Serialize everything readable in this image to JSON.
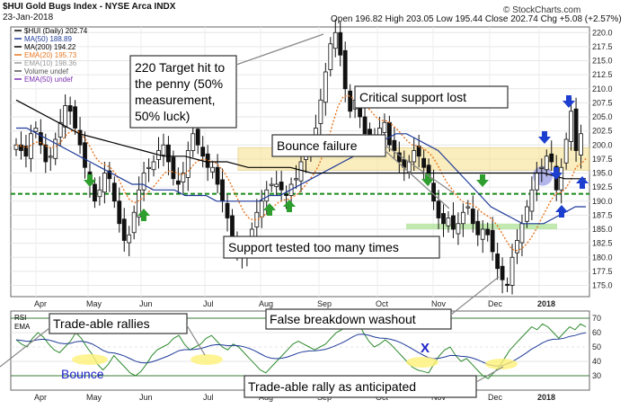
{
  "chart_data": {
    "type": "candlestick",
    "title": "$HUI Gold Bugs Index - NYSE Arca INDX",
    "date": "23-Jan-2018",
    "ohlc_summary": {
      "open": "196.82",
      "high": "203.05",
      "low": "195.44",
      "close": "202.74",
      "chg": "+5.08 (+2.57%)"
    },
    "watermark": "© StockCharts.com",
    "legend": [
      {
        "text": "$HUI (Daily) 202.74",
        "color": "#000000"
      },
      {
        "text": "MA(50) 188.89",
        "color": "#1f3b99"
      },
      {
        "text": "MA(200) 194.22",
        "color": "#000000"
      },
      {
        "text": "EMA(20) 195.73",
        "color": "#e87722"
      },
      {
        "text": "EMA(10) 198.36",
        "color": "#9a9a9a"
      },
      {
        "text": "Volume undef",
        "color": "#555555"
      },
      {
        "text": "EMA(50) undef",
        "color": "#7a2fb0"
      }
    ],
    "y_ticks": [
      "220.0",
      "217.5",
      "215.0",
      "212.5",
      "210.0",
      "207.5",
      "205.0",
      "202.5",
      "200.0",
      "197.5",
      "195.0",
      "192.5",
      "190.0",
      "187.5",
      "185.0",
      "182.5",
      "180.0",
      "177.5",
      "175.0"
    ],
    "ylim": [
      173,
      221
    ],
    "x_labels": [
      "Apr",
      "May",
      "Jun",
      "Jul",
      "Aug",
      "Sep",
      "Oct",
      "Nov",
      "Dec",
      "2018"
    ],
    "support_line": 191.3,
    "resistance_zone": [
      195.5,
      199.5
    ],
    "lower_zone": [
      185,
      186
    ],
    "series": [
      {
        "name": "price",
        "values": [
          200,
          199,
          198,
          202,
          203,
          200,
          197,
          198,
          201,
          204,
          207,
          206,
          203,
          200,
          196,
          193,
          190,
          192,
          195,
          194,
          190,
          186,
          183,
          184,
          188,
          192,
          195,
          196,
          197,
          199,
          200,
          197,
          194,
          193,
          195,
          199,
          202,
          200,
          198,
          196,
          196,
          193,
          190,
          187,
          183,
          181,
          180,
          182,
          185,
          188,
          190,
          192,
          193,
          193,
          192,
          191,
          193,
          194,
          197,
          199,
          200,
          203,
          208,
          213,
          218,
          220,
          216,
          210,
          206,
          208,
          205,
          202,
          201,
          200,
          203,
          204,
          200,
          199,
          197,
          196,
          197,
          199,
          198,
          196,
          194,
          190,
          187,
          186,
          187,
          185,
          186,
          188,
          189,
          186,
          184,
          185,
          184,
          181,
          178,
          176,
          175,
          180,
          183,
          186,
          189,
          192,
          195,
          196,
          198,
          197,
          192,
          196,
          201,
          206,
          199,
          202
        ]
      },
      {
        "name": "MA(50)",
        "values": [
          203,
          203,
          202,
          201,
          200,
          199,
          198,
          197,
          196,
          195,
          194,
          193,
          193,
          192,
          192,
          192,
          191,
          191,
          191,
          190,
          190,
          190,
          190,
          190,
          191,
          191,
          192,
          193,
          194,
          195,
          196,
          197,
          198,
          199,
          200,
          201,
          202,
          202,
          201,
          200,
          199,
          197,
          195,
          193,
          191,
          189,
          188,
          187,
          186,
          186,
          186,
          187,
          188,
          189,
          189
        ]
      },
      {
        "name": "MA(200)",
        "values": [
          208,
          206,
          204,
          202,
          201,
          200,
          199,
          198,
          198,
          197,
          197,
          196,
          196,
          196,
          195,
          195,
          195,
          195,
          195,
          195,
          195,
          195,
          195,
          195,
          195,
          195,
          194,
          194
        ]
      }
    ],
    "rsi": {
      "label_rsi": "RSI",
      "label_ema": "EMA",
      "ticks": [
        "70",
        "60",
        "50",
        "40",
        "30"
      ],
      "x_labels": [
        "Apr",
        "May",
        "Jun",
        "Jul",
        "Aug",
        "Sep",
        "Oct",
        "Nov",
        "Dec",
        "2018"
      ],
      "values": [
        55,
        52,
        50,
        56,
        60,
        57,
        52,
        48,
        46,
        50,
        54,
        60,
        56,
        50,
        45,
        38,
        34,
        38,
        44,
        40,
        36,
        32,
        30,
        33,
        38,
        44,
        48,
        50,
        52,
        56,
        58,
        52,
        48,
        50,
        52,
        56,
        58,
        54,
        50,
        48,
        52,
        50,
        46,
        42,
        38,
        34,
        32,
        36,
        40,
        44,
        48,
        52,
        54,
        52,
        50,
        48,
        50,
        52,
        56,
        60,
        62,
        66,
        70,
        68,
        60,
        54,
        50,
        52,
        55,
        52,
        48,
        44,
        40,
        36,
        34,
        33,
        32,
        38,
        44,
        48,
        50,
        44,
        40,
        42,
        38,
        34,
        30,
        28,
        32,
        36,
        42,
        48,
        52,
        56,
        60,
        64,
        62,
        66,
        64,
        60,
        56,
        60,
        64,
        62,
        66,
        64
      ]
    }
  },
  "annotations": {
    "target": "220 Target hit to the penny (50% measurement, 50% luck)",
    "critical": "Critical support lost",
    "bounce_failure": "Bounce failure",
    "support_tested": "Support tested too many times",
    "false_breakdown": "False breakdown washout",
    "tradeable_rallies": "Trade-able rallies",
    "bounce": "Bounce",
    "tradeable_rally": "Trade-able rally as anticipated",
    "x_mark": "X"
  }
}
